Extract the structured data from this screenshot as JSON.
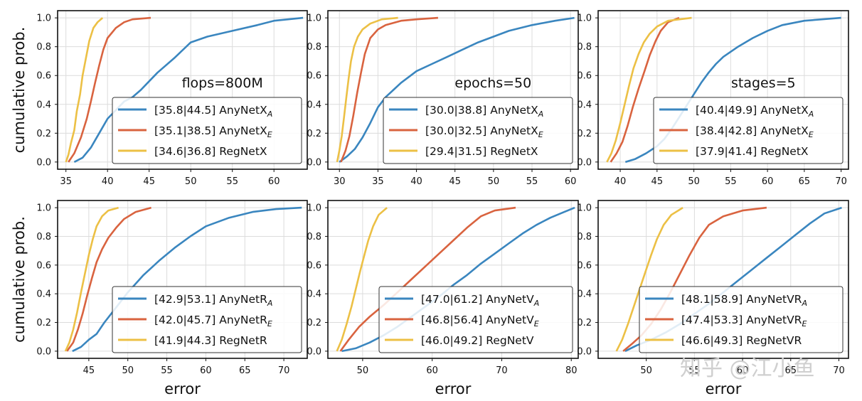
{
  "watermark": "知乎 @江小鱼",
  "series_colors": [
    "#3a86bf",
    "#d9633f",
    "#ecc045"
  ],
  "chart_data": [
    {
      "type": "line",
      "annotation": "flops=800M",
      "ylabel": "cumulative prob.",
      "xlabel": "",
      "xlim": [
        34,
        64
      ],
      "ylim": [
        -0.05,
        1.05
      ],
      "xticks": [
        35,
        40,
        45,
        50,
        55,
        60
      ],
      "yticks": [
        0.0,
        0.2,
        0.4,
        0.6,
        0.8,
        1.0
      ],
      "legend_position": "lower-right",
      "series": [
        {
          "name": "AnyNetX",
          "sub": "A",
          "range_label": "[35.8|44.5]",
          "x": [
            36,
            37,
            38,
            39,
            40,
            41,
            42,
            43,
            44,
            45,
            46,
            48,
            50,
            52,
            55,
            58,
            60,
            63.5
          ],
          "y": [
            0,
            0.03,
            0.1,
            0.2,
            0.3,
            0.36,
            0.42,
            0.45,
            0.5,
            0.56,
            0.62,
            0.72,
            0.83,
            0.87,
            0.91,
            0.95,
            0.98,
            1.0
          ]
        },
        {
          "name": "AnyNetX",
          "sub": "E",
          "range_label": "[35.1|38.5]",
          "x": [
            35.3,
            36,
            36.8,
            37.5,
            38,
            38.5,
            39,
            39.5,
            40,
            41,
            42,
            43,
            45.2
          ],
          "y": [
            0,
            0.06,
            0.17,
            0.3,
            0.42,
            0.55,
            0.67,
            0.78,
            0.86,
            0.93,
            0.97,
            0.99,
            1.0
          ]
        },
        {
          "name": "RegNetX",
          "sub": "",
          "range_label": "[34.6|36.8]",
          "x": [
            35,
            35.3,
            35.6,
            36,
            36.3,
            36.7,
            37,
            37.4,
            37.8,
            38.3,
            38.8,
            39.4
          ],
          "y": [
            0,
            0.05,
            0.13,
            0.22,
            0.35,
            0.47,
            0.6,
            0.72,
            0.84,
            0.93,
            0.97,
            1.0
          ]
        }
      ]
    },
    {
      "type": "line",
      "annotation": "epochs=50",
      "ylabel": "",
      "xlabel": "",
      "xlim": [
        28.5,
        61
      ],
      "ylim": [
        -0.05,
        1.05
      ],
      "xticks": [
        30,
        35,
        40,
        45,
        50,
        55,
        60
      ],
      "yticks": [
        0.0,
        0.2,
        0.4,
        0.6,
        0.8,
        1.0
      ],
      "legend_position": "lower-right",
      "series": [
        {
          "name": "AnyNetX",
          "sub": "A",
          "range_label": "[30.0|38.8]",
          "x": [
            30,
            31,
            32,
            33,
            34,
            35,
            36,
            37,
            38,
            39,
            40,
            42,
            44,
            46,
            48,
            50,
            52,
            55,
            58,
            60.5
          ],
          "y": [
            0,
            0.04,
            0.09,
            0.17,
            0.27,
            0.38,
            0.45,
            0.5,
            0.55,
            0.59,
            0.63,
            0.68,
            0.73,
            0.78,
            0.83,
            0.87,
            0.91,
            0.95,
            0.98,
            1.0
          ]
        },
        {
          "name": "AnyNetX",
          "sub": "E",
          "range_label": "[30.0|32.5]",
          "x": [
            30.2,
            30.8,
            31.3,
            31.8,
            32.3,
            32.8,
            33.3,
            34,
            35,
            36,
            38,
            40,
            42.8
          ],
          "y": [
            0,
            0.08,
            0.18,
            0.32,
            0.48,
            0.62,
            0.75,
            0.86,
            0.92,
            0.95,
            0.98,
            0.99,
            1.0
          ]
        },
        {
          "name": "RegNetX",
          "sub": "",
          "range_label": "[29.4|31.5]",
          "x": [
            29.7,
            30,
            30.3,
            30.6,
            30.9,
            31.2,
            31.5,
            31.9,
            32.4,
            33,
            34,
            35.5,
            37.6
          ],
          "y": [
            0,
            0.08,
            0.18,
            0.31,
            0.45,
            0.58,
            0.7,
            0.8,
            0.87,
            0.92,
            0.96,
            0.99,
            1.0
          ]
        }
      ]
    },
    {
      "type": "line",
      "annotation": "stages=5",
      "ylabel": "",
      "xlabel": "",
      "xlim": [
        37,
        71
      ],
      "ylim": [
        -0.05,
        1.05
      ],
      "xticks": [
        40,
        45,
        50,
        55,
        60,
        65,
        70
      ],
      "yticks": [
        0.0,
        0.2,
        0.4,
        0.6,
        0.8,
        1.0
      ],
      "legend_position": "lower-right",
      "series": [
        {
          "name": "AnyNetX",
          "sub": "A",
          "range_label": "[40.4|49.9]",
          "x": [
            40.7,
            42,
            43.5,
            45,
            46,
            47,
            48,
            49,
            50,
            51,
            52,
            53,
            54,
            56,
            58,
            60,
            62,
            65,
            70
          ],
          "y": [
            0,
            0.02,
            0.06,
            0.11,
            0.16,
            0.23,
            0.31,
            0.39,
            0.47,
            0.55,
            0.62,
            0.68,
            0.73,
            0.8,
            0.86,
            0.91,
            0.95,
            0.98,
            1.0
          ]
        },
        {
          "name": "AnyNetX",
          "sub": "E",
          "range_label": "[38.4|42.8]",
          "x": [
            38.7,
            39.5,
            40.3,
            41,
            41.7,
            42.5,
            43.3,
            44,
            44.8,
            45.5,
            46.5,
            48
          ],
          "y": [
            0,
            0.06,
            0.14,
            0.25,
            0.38,
            0.51,
            0.63,
            0.74,
            0.84,
            0.91,
            0.97,
            1.0
          ]
        },
        {
          "name": "RegNetX",
          "sub": "",
          "range_label": "[37.9|41.4]",
          "x": [
            38.2,
            38.8,
            39.4,
            40,
            40.6,
            41.2,
            41.8,
            42.5,
            43.2,
            44,
            45,
            46.5,
            49.7
          ],
          "y": [
            0,
            0.06,
            0.15,
            0.27,
            0.4,
            0.53,
            0.65,
            0.75,
            0.83,
            0.89,
            0.94,
            0.98,
            1.0
          ]
        }
      ]
    },
    {
      "type": "line",
      "annotation": "",
      "ylabel": "cumulative prob.",
      "xlabel": "error",
      "xlim": [
        41,
        73
      ],
      "ylim": [
        -0.05,
        1.05
      ],
      "xticks": [
        45,
        50,
        55,
        60,
        65,
        70
      ],
      "yticks": [
        0.0,
        0.2,
        0.4,
        0.6,
        0.8,
        1.0
      ],
      "legend_position": "lower-right",
      "series": [
        {
          "name": "AnyNetR",
          "sub": "A",
          "range_label": "[42.9|53.1]",
          "x": [
            42.9,
            44,
            45,
            46,
            47,
            48,
            49,
            50,
            51,
            52,
            53,
            54,
            56,
            58,
            60,
            63,
            66,
            69,
            72.3
          ],
          "y": [
            0,
            0.03,
            0.08,
            0.12,
            0.2,
            0.27,
            0.34,
            0.41,
            0.47,
            0.53,
            0.58,
            0.63,
            0.72,
            0.8,
            0.87,
            0.93,
            0.97,
            0.99,
            1.0
          ]
        },
        {
          "name": "AnyNetR",
          "sub": "E",
          "range_label": "[42.0|45.7]",
          "x": [
            42.2,
            43,
            43.6,
            44.2,
            44.8,
            45.4,
            46,
            46.7,
            47.5,
            48.5,
            49.5,
            51,
            53
          ],
          "y": [
            0,
            0.06,
            0.15,
            0.26,
            0.39,
            0.51,
            0.62,
            0.71,
            0.79,
            0.86,
            0.92,
            0.97,
            1.0
          ]
        },
        {
          "name": "RegNetR",
          "sub": "",
          "range_label": "[41.9|44.3]",
          "x": [
            42,
            42.5,
            43,
            43.5,
            44,
            44.5,
            45,
            45.5,
            46,
            46.7,
            47.5,
            48.8
          ],
          "y": [
            0,
            0.06,
            0.15,
            0.27,
            0.41,
            0.54,
            0.67,
            0.78,
            0.87,
            0.94,
            0.98,
            1.0
          ]
        }
      ]
    },
    {
      "type": "line",
      "annotation": "",
      "ylabel": "",
      "xlabel": "error",
      "xlim": [
        45,
        81
      ],
      "ylim": [
        -0.05,
        1.05
      ],
      "xticks": [
        50,
        60,
        70,
        80
      ],
      "yticks": [
        0.0,
        0.2,
        0.4,
        0.6,
        0.8,
        1.0
      ],
      "legend_position": "lower-right",
      "series": [
        {
          "name": "AnyNetV",
          "sub": "A",
          "range_label": "[47.0|61.2]",
          "x": [
            47,
            49,
            51,
            53,
            55,
            57,
            59,
            61,
            63,
            65,
            67,
            69,
            71,
            73,
            75,
            77,
            79,
            80.5
          ],
          "y": [
            0,
            0.02,
            0.06,
            0.11,
            0.17,
            0.24,
            0.31,
            0.38,
            0.46,
            0.53,
            0.61,
            0.68,
            0.75,
            0.82,
            0.88,
            0.93,
            0.97,
            1.0
          ]
        },
        {
          "name": "AnyNetV",
          "sub": "E",
          "range_label": "[46.8|56.4]",
          "x": [
            46.8,
            48,
            49.5,
            51,
            53,
            55,
            57,
            59,
            61,
            63,
            65,
            67,
            69,
            72
          ],
          "y": [
            0,
            0.08,
            0.17,
            0.24,
            0.32,
            0.41,
            0.5,
            0.59,
            0.68,
            0.77,
            0.86,
            0.94,
            0.98,
            1.0
          ]
        },
        {
          "name": "RegNetV",
          "sub": "",
          "range_label": "[46.0|49.2]",
          "x": [
            46.3,
            47,
            47.7,
            48.4,
            49,
            49.6,
            50.2,
            50.8,
            51.5,
            52.3,
            53.5
          ],
          "y": [
            0,
            0.08,
            0.19,
            0.31,
            0.43,
            0.55,
            0.66,
            0.77,
            0.87,
            0.95,
            1.0
          ]
        }
      ]
    },
    {
      "type": "line",
      "annotation": "",
      "ylabel": "",
      "xlabel": "error",
      "xlim": [
        45,
        71
      ],
      "ylim": [
        -0.05,
        1.05
      ],
      "xticks": [
        50,
        55,
        60,
        65,
        70
      ],
      "yticks": [
        0.0,
        0.2,
        0.4,
        0.6,
        0.8,
        1.0
      ],
      "legend_position": "lower-right",
      "series": [
        {
          "name": "AnyNetVR",
          "sub": "A",
          "range_label": "[48.1|58.9]",
          "x": [
            47.8,
            49,
            50.5,
            52,
            53.5,
            55,
            56.5,
            58,
            59.5,
            61,
            62.5,
            64,
            65.5,
            67,
            68.5,
            70.3
          ],
          "y": [
            0,
            0.04,
            0.08,
            0.13,
            0.19,
            0.26,
            0.33,
            0.41,
            0.49,
            0.57,
            0.65,
            0.73,
            0.81,
            0.89,
            0.96,
            1.0
          ]
        },
        {
          "name": "AnyNetVR",
          "sub": "E",
          "range_label": "[47.4|53.3]",
          "x": [
            47.6,
            48.5,
            49.5,
            50.5,
            51.5,
            52.5,
            53.5,
            54.5,
            55.5,
            56.5,
            58,
            60,
            62.5
          ],
          "y": [
            0,
            0.05,
            0.11,
            0.19,
            0.29,
            0.41,
            0.54,
            0.67,
            0.79,
            0.88,
            0.94,
            0.98,
            1.0
          ]
        },
        {
          "name": "RegNetVR",
          "sub": "",
          "range_label": "[46.6|49.3]",
          "x": [
            46.9,
            47.5,
            48.1,
            48.7,
            49.3,
            49.9,
            50.5,
            51.1,
            51.8,
            52.6,
            53.8
          ],
          "y": [
            0,
            0.08,
            0.19,
            0.31,
            0.43,
            0.55,
            0.67,
            0.78,
            0.88,
            0.95,
            1.0
          ]
        }
      ]
    }
  ]
}
